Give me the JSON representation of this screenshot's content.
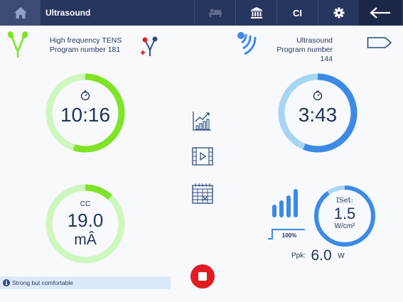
{
  "header": {
    "title": "Ultrasound",
    "ci_label": "CI",
    "icons": [
      "home-icon",
      "therapy-bed-icon",
      "institution-icon",
      "gear-icon",
      "back-arrow-icon"
    ]
  },
  "left_program": {
    "line1": "High frequency TENS",
    "line2": "Program number 181",
    "timer": "10:16",
    "timer_progress": 0.55,
    "current_mode": "CC",
    "current_value": "19.0",
    "current_unit": "mÂ",
    "current_progress": 0.12
  },
  "right_program": {
    "line1": "Ultrasound",
    "line2": "Program number 144",
    "timer": "3:43",
    "timer_progress": 0.56,
    "iset_label": "ISet:",
    "iset_value": "1.5",
    "iset_unit": "W/cm²",
    "iset_progress": 0.9,
    "duty_label": "100%",
    "ppk_label": "Ppk:",
    "ppk_value": "6.0",
    "ppk_unit": "W"
  },
  "middle_tools": [
    "trend-chart-icon",
    "video-icon",
    "calendar-icon"
  ],
  "status_message": "Strong but comfortable",
  "colors": {
    "header": "#27365f",
    "green_track": "#cdf7bd",
    "green_fill": "#7fe326",
    "blue_track": "#a8d4f5",
    "blue_fill": "#3d8ae6",
    "stop_button": "#e11b22"
  }
}
